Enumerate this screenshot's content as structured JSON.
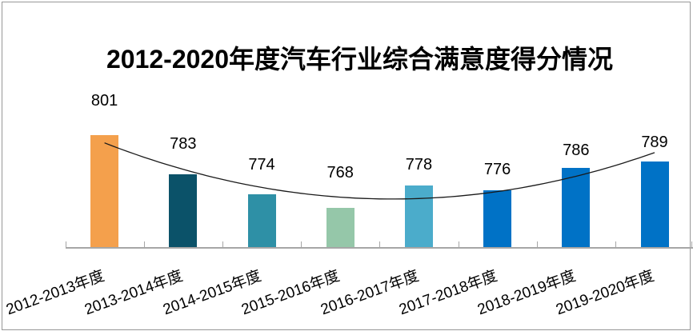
{
  "chart_data": {
    "type": "bar",
    "title": "2012-2020年度汽车行业综合满意度得分情况",
    "categories": [
      "2012-2013年度",
      "2013-2014年度",
      "2014-2015年度",
      "2015-2016年度",
      "2016-2017年度",
      "2017-2018年度",
      "2018-2019年度",
      "2019-2020年度"
    ],
    "values": [
      801,
      783,
      774,
      768,
      778,
      776,
      786,
      789
    ],
    "data_labels_shown": true,
    "bar_colors": [
      "#F4A04C",
      "#0B5269",
      "#2E90A6",
      "#95C7A9",
      "#4BACCB",
      "#0072C6",
      "#0072C6",
      "#0072C6"
    ],
    "trendline": {
      "kind": "polynomial",
      "order": 2,
      "color": "#1a1a1a"
    },
    "xlabel": "",
    "ylabel": "",
    "ylim": [
      750,
      806
    ],
    "grid": false,
    "legend": "none",
    "axis_color": "#a6a6a6",
    "x_tick_style": "inside"
  }
}
